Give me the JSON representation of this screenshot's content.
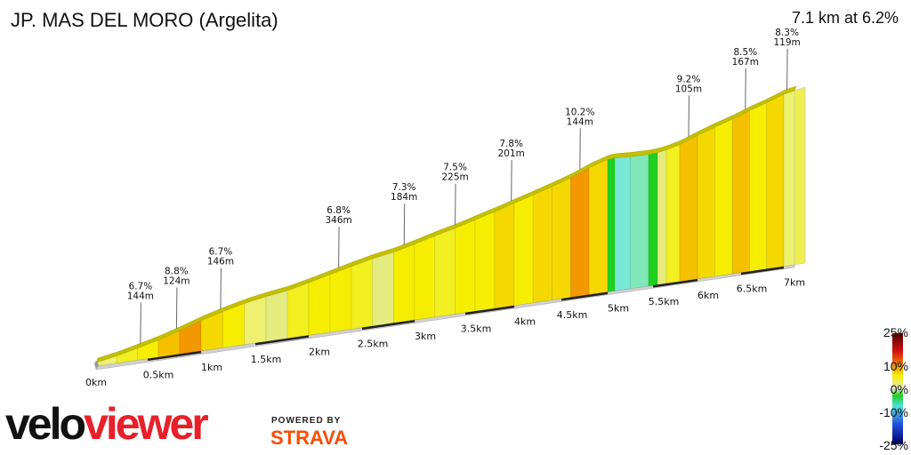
{
  "header": {
    "title": "JP. MAS DEL MORO (Argelita)",
    "summary": "7.1 km at 6.2%"
  },
  "chart_data": {
    "type": "area",
    "xlabel": "",
    "ylabel": "",
    "total_km": 7.1,
    "avg_gradient_pct": 6.2,
    "x_ticks": [
      "0km",
      "0.5km",
      "1km",
      "1.5km",
      "2km",
      "2.5km",
      "3km",
      "3.5km",
      "4km",
      "4.5km",
      "5km",
      "5.5km",
      "6km",
      "6.5km",
      "7km"
    ],
    "x_tick_values": [
      0,
      0.5,
      1,
      1.5,
      2,
      2.5,
      3,
      3.5,
      4,
      4.5,
      5,
      5.5,
      6,
      6.5,
      7
    ],
    "segments": [
      {
        "from": 0.0,
        "to": 0.2,
        "gradient": 5
      },
      {
        "from": 0.2,
        "to": 0.4,
        "gradient": 6.5
      },
      {
        "from": 0.4,
        "to": 0.6,
        "gradient": 7
      },
      {
        "from": 0.6,
        "to": 0.8,
        "gradient": 8.8
      },
      {
        "from": 0.8,
        "to": 1.0,
        "gradient": 9.5
      },
      {
        "from": 1.0,
        "to": 1.2,
        "gradient": 8
      },
      {
        "from": 1.2,
        "to": 1.4,
        "gradient": 7
      },
      {
        "from": 1.4,
        "to": 1.6,
        "gradient": 5
      },
      {
        "from": 1.6,
        "to": 1.8,
        "gradient": 4
      },
      {
        "from": 1.8,
        "to": 2.0,
        "gradient": 6.5
      },
      {
        "from": 2.0,
        "to": 2.2,
        "gradient": 7
      },
      {
        "from": 2.2,
        "to": 2.4,
        "gradient": 7
      },
      {
        "from": 2.4,
        "to": 2.6,
        "gradient": 6.5
      },
      {
        "from": 2.6,
        "to": 2.8,
        "gradient": 4.5
      },
      {
        "from": 2.8,
        "to": 3.0,
        "gradient": 7
      },
      {
        "from": 3.0,
        "to": 3.2,
        "gradient": 7.3
      },
      {
        "from": 3.2,
        "to": 3.4,
        "gradient": 6.5
      },
      {
        "from": 3.4,
        "to": 3.6,
        "gradient": 7.5
      },
      {
        "from": 3.6,
        "to": 3.8,
        "gradient": 7.2
      },
      {
        "from": 3.8,
        "to": 4.0,
        "gradient": 7.8
      },
      {
        "from": 4.0,
        "to": 4.2,
        "gradient": 7.5
      },
      {
        "from": 4.2,
        "to": 4.4,
        "gradient": 7.8
      },
      {
        "from": 4.4,
        "to": 4.6,
        "gradient": 8.2
      },
      {
        "from": 4.6,
        "to": 4.8,
        "gradient": 10.2
      },
      {
        "from": 4.8,
        "to": 5.0,
        "gradient": 7.8
      },
      {
        "from": 5.0,
        "to": 5.08,
        "gradient": 1
      },
      {
        "from": 5.08,
        "to": 5.25,
        "gradient": -1.5
      },
      {
        "from": 5.25,
        "to": 5.45,
        "gradient": -0.5
      },
      {
        "from": 5.45,
        "to": 5.55,
        "gradient": 1.5
      },
      {
        "from": 5.55,
        "to": 5.65,
        "gradient": 4
      },
      {
        "from": 5.65,
        "to": 5.8,
        "gradient": 6
      },
      {
        "from": 5.8,
        "to": 6.0,
        "gradient": 9.2
      },
      {
        "from": 6.0,
        "to": 6.2,
        "gradient": 8
      },
      {
        "from": 6.2,
        "to": 6.4,
        "gradient": 7.2
      },
      {
        "from": 6.4,
        "to": 6.6,
        "gradient": 8.5
      },
      {
        "from": 6.6,
        "to": 6.8,
        "gradient": 7.3
      },
      {
        "from": 6.8,
        "to": 7.0,
        "gradient": 8.3
      },
      {
        "from": 7.0,
        "to": 7.1,
        "gradient": 5.5
      }
    ],
    "annotations": [
      {
        "km": 0.43,
        "gradient": "6.7%",
        "length": "144m"
      },
      {
        "km": 0.77,
        "gradient": "8.8%",
        "length": "124m"
      },
      {
        "km": 1.18,
        "gradient": "6.7%",
        "length": "146m"
      },
      {
        "km": 2.28,
        "gradient": "6.8%",
        "length": "346m"
      },
      {
        "km": 2.9,
        "gradient": "7.3%",
        "length": "184m"
      },
      {
        "km": 3.4,
        "gradient": "7.5%",
        "length": "225m"
      },
      {
        "km": 3.97,
        "gradient": "7.8%",
        "length": "201m"
      },
      {
        "km": 4.7,
        "gradient": "10.2%",
        "length": "144m"
      },
      {
        "km": 5.9,
        "gradient": "9.2%",
        "length": "105m"
      },
      {
        "km": 6.55,
        "gradient": "8.5%",
        "length": "167m"
      },
      {
        "km": 7.03,
        "gradient": "8.3%",
        "length": "119m"
      }
    ],
    "legend": {
      "title": "",
      "labels": [
        "25%",
        "10%",
        "0%",
        "-10%",
        "-25%"
      ],
      "placement": "bottom-right"
    }
  },
  "branding": {
    "logo_text_1": "velo",
    "logo_text_2": "viewer",
    "powered_by": "POWERED BY",
    "strava": "STRAVA",
    "strava_color": "#fc4c02",
    "logo_accent": "#e8202a"
  }
}
